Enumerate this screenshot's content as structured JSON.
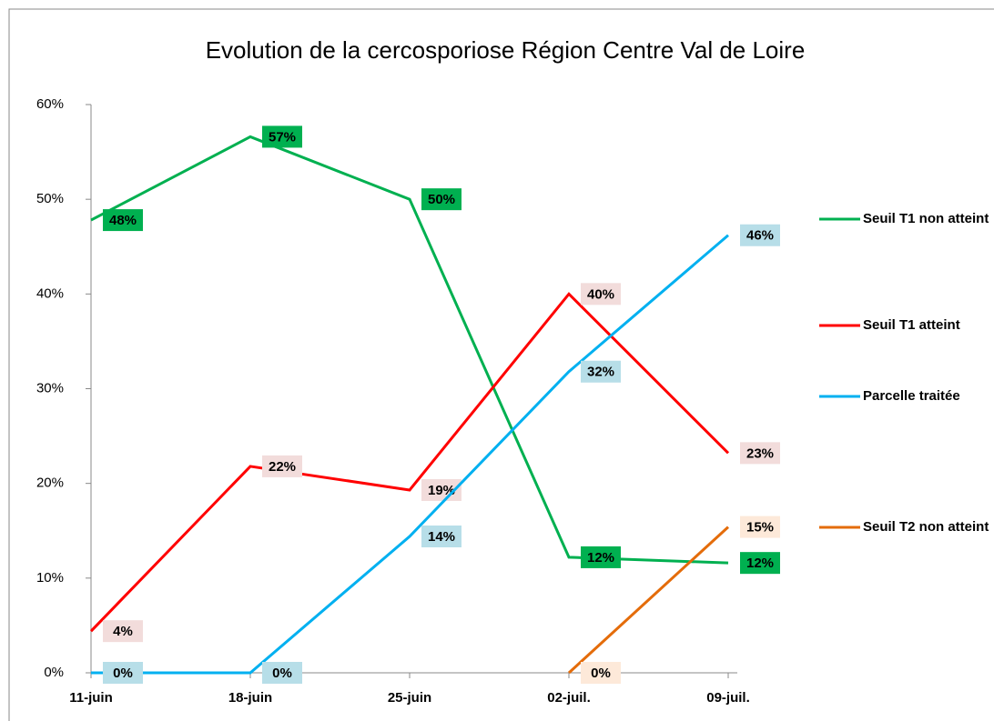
{
  "chart_data": {
    "type": "line",
    "title": "Evolution de la cercosporiose Région Centre Val de Loire",
    "categories": [
      "11-juin",
      "18-juin",
      "25-juin",
      "02-juil.",
      "09-juil."
    ],
    "ylim": [
      0,
      60
    ],
    "yticks": [
      {
        "value": 0,
        "label": "0%"
      },
      {
        "value": 10,
        "label": "10%"
      },
      {
        "value": 20,
        "label": "20%"
      },
      {
        "value": 30,
        "label": "30%"
      },
      {
        "value": 40,
        "label": "40%"
      },
      {
        "value": 50,
        "label": "50%"
      },
      {
        "value": 60,
        "label": "60%"
      }
    ],
    "grid": false,
    "legend": "right",
    "series": [
      {
        "name": "Seuil T1 non atteint",
        "color": "#00b050",
        "label_color": "#00b050",
        "values": [
          47.8,
          56.6,
          50,
          12.2,
          11.6
        ],
        "value_labels": [
          "48%",
          "57%",
          "50%",
          "12%",
          "12%"
        ]
      },
      {
        "name": "Seuil T1 atteint",
        "color": "#ff0000",
        "label_color": "#f2dcdb",
        "values": [
          4.4,
          21.8,
          19.3,
          40,
          23.2
        ],
        "value_labels": [
          "4%",
          "22%",
          "19%",
          "40%",
          "23%"
        ]
      },
      {
        "name": "Parcelle  traitée",
        "color": "#00b0f0",
        "label_color": "#b7dee8",
        "values": [
          0,
          0,
          14.4,
          31.8,
          46.2
        ],
        "value_labels": [
          "0%",
          "0%",
          "14%",
          "32%",
          "46%"
        ]
      },
      {
        "name": "Seuil T2 non atteint",
        "color": "#e46c0a",
        "label_color": "#fde9d9",
        "values": [
          null,
          null,
          null,
          0,
          15.4
        ],
        "value_labels": [
          null,
          null,
          null,
          "0%",
          "15%"
        ]
      }
    ]
  }
}
